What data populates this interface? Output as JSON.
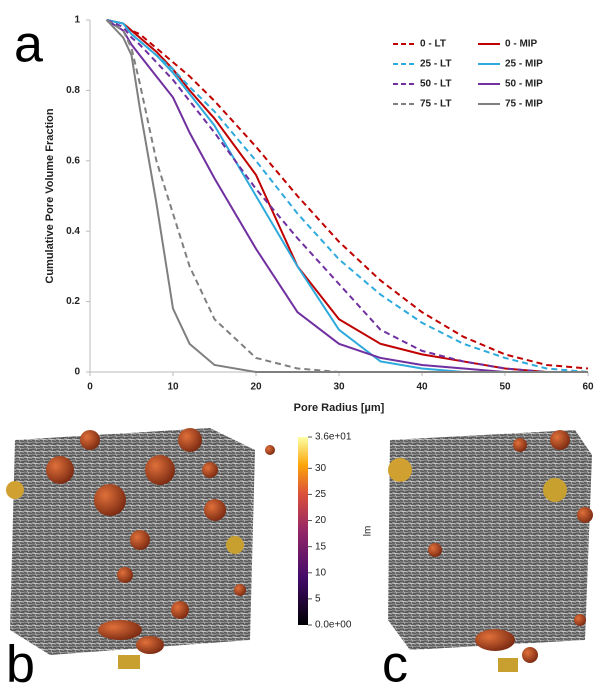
{
  "panel_labels": [
    "a",
    "b",
    "c"
  ],
  "chart_data": {
    "type": "line",
    "x_label": "Pore Radius [µm]",
    "y_label": "Cumulative Pore Volume Fraction",
    "x": [
      2,
      4,
      5,
      6,
      8,
      10,
      12,
      15,
      20,
      25,
      30,
      35,
      40,
      45,
      50,
      55,
      60
    ],
    "series": [
      {
        "name": "0 - LT",
        "color": "#c00000",
        "line_style": "dashed",
        "values": [
          1,
          0.99,
          0.97,
          0.96,
          0.92,
          0.88,
          0.84,
          0.77,
          0.64,
          0.5,
          0.37,
          0.26,
          0.17,
          0.1,
          0.05,
          0.02,
          0.01
        ]
      },
      {
        "name": "0 - MIP",
        "color": "#c00000",
        "line_style": "solid",
        "values": [
          1,
          0.99,
          0.97,
          0.95,
          0.91,
          0.86,
          0.8,
          0.72,
          0.56,
          0.3,
          0.15,
          0.08,
          0.05,
          0.03,
          0.01,
          0,
          0
        ]
      },
      {
        "name": "25 - LT",
        "color": "#2eaadc",
        "line_style": "dashed",
        "values": [
          1,
          0.99,
          0.96,
          0.94,
          0.9,
          0.86,
          0.81,
          0.74,
          0.6,
          0.45,
          0.32,
          0.22,
          0.14,
          0.08,
          0.04,
          0.01,
          0
        ]
      },
      {
        "name": "25 - MIP",
        "color": "#2eaadc",
        "line_style": "solid",
        "values": [
          1,
          0.99,
          0.96,
          0.94,
          0.9,
          0.85,
          0.79,
          0.7,
          0.5,
          0.3,
          0.12,
          0.03,
          0.01,
          0,
          0,
          0,
          0
        ]
      },
      {
        "name": "50 - LT",
        "color": "#7030a0",
        "line_style": "dashed",
        "values": [
          1,
          0.98,
          0.95,
          0.93,
          0.88,
          0.83,
          0.77,
          0.68,
          0.52,
          0.38,
          0.25,
          0.12,
          0.06,
          0.03,
          0.01,
          0,
          0
        ]
      },
      {
        "name": "50 - MIP",
        "color": "#7030a0",
        "line_style": "solid",
        "values": [
          1,
          0.97,
          0.93,
          0.9,
          0.84,
          0.78,
          0.68,
          0.55,
          0.35,
          0.17,
          0.08,
          0.04,
          0.02,
          0.01,
          0,
          0,
          0
        ]
      },
      {
        "name": "75 - LT",
        "color": "#7f7f7f",
        "line_style": "dashed",
        "values": [
          1,
          0.97,
          0.92,
          0.82,
          0.6,
          0.45,
          0.3,
          0.15,
          0.04,
          0.01,
          0,
          0,
          0,
          0,
          0,
          0,
          0
        ]
      },
      {
        "name": "75 - MIP",
        "color": "#7f7f7f",
        "line_style": "solid",
        "values": [
          1,
          0.95,
          0.9,
          0.75,
          0.48,
          0.18,
          0.08,
          0.02,
          0,
          0,
          0,
          0,
          0,
          0,
          0,
          0,
          0
        ]
      }
    ],
    "xlim": [
      0,
      60
    ],
    "xticks": [
      0,
      10,
      20,
      30,
      40,
      50,
      60
    ],
    "ylim": [
      0,
      1
    ],
    "yticks": [
      0,
      0.2,
      0.4,
      0.6,
      0.8,
      1
    ],
    "legend": "upper right"
  },
  "colorbar": {
    "label": "lm",
    "lim": [
      0,
      36
    ],
    "ticks": [
      {
        "value": 36,
        "label": "3.6e+01"
      },
      30,
      25,
      20,
      15,
      10,
      5,
      {
        "value": 0,
        "label": "0.0e+00"
      }
    ]
  }
}
